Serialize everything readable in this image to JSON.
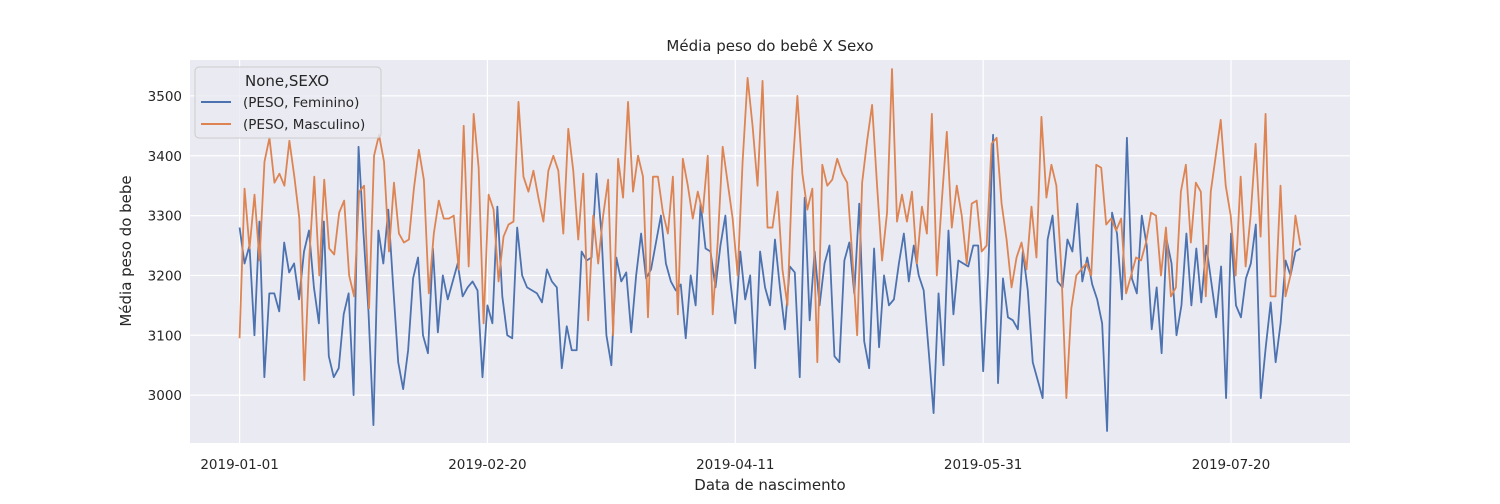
{
  "chart_data": {
    "type": "line",
    "title": "Média peso do bebê X Sexo",
    "xlabel": "Data de nascimento",
    "ylabel": "Média peso do bebe",
    "x_start": "2019-01-01",
    "x_end": "2019-08-03",
    "xlim": [
      "2018-12-22",
      "2019-08-13"
    ],
    "ylim": [
      2920,
      3560
    ],
    "x_ticks": [
      "2019-01-01",
      "2019-02-20",
      "2019-04-11",
      "2019-05-31",
      "2019-07-20"
    ],
    "y_ticks": [
      3000,
      3100,
      3200,
      3300,
      3400,
      3500
    ],
    "grid": true,
    "style": "seaborn-darkgrid",
    "legend": {
      "title": "None,SEXO",
      "placement": "top-left"
    },
    "series": [
      {
        "name": "(PESO, Feminino)",
        "color": "#4c72b0",
        "values": [
          3280,
          3220,
          3250,
          3100,
          3290,
          3030,
          3170,
          3170,
          3140,
          3255,
          3205,
          3220,
          3160,
          3240,
          3275,
          3180,
          3120,
          3290,
          3065,
          3030,
          3045,
          3135,
          3170,
          3000,
          3415,
          3270,
          3140,
          2950,
          3275,
          3220,
          3310,
          3180,
          3055,
          3010,
          3075,
          3195,
          3230,
          3100,
          3070,
          3245,
          3105,
          3200,
          3160,
          3190,
          3220,
          3165,
          3180,
          3190,
          3175,
          3030,
          3150,
          3120,
          3315,
          3165,
          3100,
          3095,
          3280,
          3200,
          3180,
          3175,
          3170,
          3155,
          3210,
          3190,
          3180,
          3045,
          3115,
          3075,
          3075,
          3240,
          3225,
          3230,
          3370,
          3270,
          3100,
          3050,
          3230,
          3190,
          3205,
          3105,
          3200,
          3270,
          3195,
          3210,
          3255,
          3300,
          3220,
          3190,
          3175,
          3185,
          3095,
          3200,
          3150,
          3320,
          3245,
          3240,
          3180,
          3250,
          3300,
          3190,
          3120,
          3240,
          3160,
          3200,
          3045,
          3240,
          3180,
          3150,
          3260,
          3180,
          3110,
          3215,
          3205,
          3030,
          3330,
          3125,
          3240,
          3150,
          3220,
          3250,
          3065,
          3055,
          3225,
          3255,
          3170,
          3320,
          3090,
          3045,
          3245,
          3080,
          3200,
          3150,
          3160,
          3220,
          3270,
          3190,
          3250,
          3200,
          3175,
          3075,
          2970,
          3170,
          3050,
          3275,
          3135,
          3225,
          3220,
          3215,
          3250,
          3250,
          3040,
          3205,
          3435,
          3020,
          3195,
          3130,
          3125,
          3110,
          3240,
          3175,
          3055,
          3025,
          2995,
          3260,
          3300,
          3190,
          3180,
          3260,
          3240,
          3320,
          3190,
          3230,
          3185,
          3160,
          3120,
          2940,
          3305,
          3270,
          3160,
          3430,
          3195,
          3170,
          3300,
          3250,
          3110,
          3180,
          3070,
          3260,
          3220,
          3100,
          3150,
          3270,
          3150,
          3245,
          3155,
          3250,
          3190,
          3130,
          3215,
          2995,
          3270,
          3150,
          3130,
          3195,
          3220,
          3285,
          2995,
          3080,
          3155,
          3055,
          3120,
          3225,
          3200,
          3240,
          3245
        ]
      },
      {
        "name": "(PESO, Masculino)",
        "color": "#dd8452",
        "values": [
          3095,
          3345,
          3245,
          3335,
          3225,
          3390,
          3430,
          3355,
          3370,
          3350,
          3425,
          3365,
          3295,
          3025,
          3230,
          3365,
          3200,
          3360,
          3245,
          3235,
          3305,
          3325,
          3200,
          3165,
          3340,
          3350,
          3145,
          3400,
          3435,
          3390,
          3240,
          3355,
          3270,
          3255,
          3260,
          3345,
          3410,
          3360,
          3170,
          3270,
          3325,
          3295,
          3295,
          3300,
          3210,
          3450,
          3215,
          3470,
          3380,
          3120,
          3335,
          3310,
          3190,
          3265,
          3285,
          3290,
          3490,
          3365,
          3340,
          3375,
          3330,
          3290,
          3375,
          3400,
          3375,
          3270,
          3445,
          3375,
          3260,
          3370,
          3125,
          3300,
          3220,
          3300,
          3360,
          3100,
          3395,
          3330,
          3490,
          3340,
          3400,
          3365,
          3130,
          3365,
          3365,
          3305,
          3270,
          3365,
          3135,
          3395,
          3350,
          3295,
          3340,
          3305,
          3400,
          3135,
          3255,
          3415,
          3355,
          3295,
          3200,
          3390,
          3530,
          3450,
          3350,
          3525,
          3280,
          3280,
          3340,
          3210,
          3150,
          3375,
          3500,
          3370,
          3310,
          3345,
          3055,
          3385,
          3350,
          3360,
          3395,
          3370,
          3355,
          3235,
          3100,
          3355,
          3425,
          3485,
          3350,
          3225,
          3305,
          3545,
          3290,
          3335,
          3290,
          3340,
          3220,
          3315,
          3270,
          3470,
          3200,
          3325,
          3440,
          3280,
          3350,
          3300,
          3220,
          3320,
          3325,
          3240,
          3250,
          3420,
          3430,
          3320,
          3260,
          3180,
          3230,
          3255,
          3210,
          3315,
          3230,
          3465,
          3330,
          3385,
          3350,
          3210,
          2995,
          3145,
          3200,
          3210,
          3220,
          3200,
          3385,
          3380,
          3285,
          3295,
          3275,
          3295,
          3170,
          3200,
          3230,
          3225,
          3255,
          3305,
          3300,
          3200,
          3280,
          3165,
          3180,
          3340,
          3385,
          3255,
          3355,
          3340,
          3165,
          3340,
          3400,
          3460,
          3350,
          3300,
          3200,
          3365,
          3215,
          3300,
          3420,
          3265,
          3470,
          3165,
          3165,
          3350,
          3165,
          3200,
          3300,
          3250
        ]
      }
    ]
  }
}
